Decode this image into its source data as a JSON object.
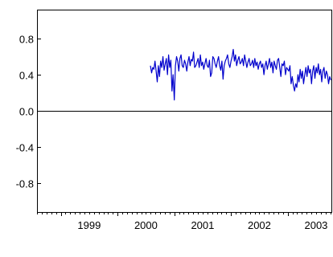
{
  "chart_data": {
    "type": "line",
    "title": "",
    "xlabel": "",
    "ylabel": "",
    "xlim": [
      1998.58,
      2003.77
    ],
    "ylim": [
      -1.12,
      1.12
    ],
    "x_ticks": [
      {
        "value": 1999.0,
        "label": "1999"
      },
      {
        "value": 2000.0,
        "label": "2000"
      },
      {
        "value": 2001.0,
        "label": "2001"
      },
      {
        "value": 2002.0,
        "label": "2002"
      },
      {
        "value": 2003.0,
        "label": "2003"
      }
    ],
    "y_ticks": [
      {
        "value": 0.8,
        "label": "0.8"
      },
      {
        "value": 0.4,
        "label": "0.4"
      },
      {
        "value": 0.0,
        "label": "0.0"
      },
      {
        "value": -0.4,
        "label": "-0.4"
      },
      {
        "value": -0.8,
        "label": "-0.8"
      }
    ],
    "zero_line": true,
    "grid": false,
    "series": [
      {
        "color": "#0000cc",
        "x": [
          2000.58,
          2000.6,
          2000.62,
          2000.64,
          2000.66,
          2000.68,
          2000.7,
          2000.72,
          2000.74,
          2000.76,
          2000.78,
          2000.8,
          2000.82,
          2000.84,
          2000.86,
          2000.88,
          2000.9,
          2000.92,
          2000.94,
          2000.96,
          2000.98,
          2001.0,
          2001.02,
          2001.04,
          2001.06,
          2001.08,
          2001.1,
          2001.12,
          2001.14,
          2001.16,
          2001.18,
          2001.2,
          2001.22,
          2001.24,
          2001.26,
          2001.28,
          2001.3,
          2001.32,
          2001.34,
          2001.36,
          2001.38,
          2001.4,
          2001.42,
          2001.44,
          2001.46,
          2001.48,
          2001.5,
          2001.52,
          2001.54,
          2001.56,
          2001.58,
          2001.6,
          2001.62,
          2001.64,
          2001.66,
          2001.68,
          2001.7,
          2001.72,
          2001.74,
          2001.76,
          2001.78,
          2001.8,
          2001.82,
          2001.84,
          2001.86,
          2001.88,
          2001.9,
          2001.92,
          2001.94,
          2001.96,
          2001.98,
          2002.0,
          2002.02,
          2002.04,
          2002.06,
          2002.08,
          2002.1,
          2002.12,
          2002.14,
          2002.16,
          2002.18,
          2002.2,
          2002.22,
          2002.24,
          2002.26,
          2002.28,
          2002.3,
          2002.32,
          2002.34,
          2002.36,
          2002.38,
          2002.4,
          2002.42,
          2002.44,
          2002.46,
          2002.48,
          2002.5,
          2002.52,
          2002.54,
          2002.56,
          2002.58,
          2002.6,
          2002.62,
          2002.64,
          2002.66,
          2002.68,
          2002.7,
          2002.72,
          2002.74,
          2002.76,
          2002.78,
          2002.8,
          2002.82,
          2002.84,
          2002.86,
          2002.88,
          2002.9,
          2002.92,
          2002.94,
          2002.96,
          2002.98,
          2003.0,
          2003.02,
          2003.04,
          2003.06,
          2003.08,
          2003.1,
          2003.12,
          2003.14,
          2003.16,
          2003.18,
          2003.2,
          2003.22,
          2003.24,
          2003.26,
          2003.28,
          2003.3,
          2003.32,
          2003.34,
          2003.36,
          2003.38,
          2003.4,
          2003.42,
          2003.44,
          2003.46,
          2003.48,
          2003.5,
          2003.52,
          2003.54,
          2003.56,
          2003.58,
          2003.6,
          2003.62,
          2003.64,
          2003.66,
          2003.68,
          2003.7,
          2003.72,
          2003.74,
          2003.76
        ],
        "y": [
          0.5,
          0.42,
          0.48,
          0.46,
          0.55,
          0.44,
          0.32,
          0.5,
          0.38,
          0.55,
          0.48,
          0.6,
          0.45,
          0.52,
          0.58,
          0.4,
          0.62,
          0.48,
          0.56,
          0.22,
          0.4,
          0.12,
          0.5,
          0.6,
          0.55,
          0.44,
          0.58,
          0.62,
          0.5,
          0.48,
          0.56,
          0.52,
          0.44,
          0.54,
          0.6,
          0.5,
          0.57,
          0.55,
          0.65,
          0.48,
          0.5,
          0.54,
          0.58,
          0.48,
          0.62,
          0.5,
          0.54,
          0.46,
          0.52,
          0.58,
          0.5,
          0.48,
          0.56,
          0.38,
          0.42,
          0.6,
          0.58,
          0.52,
          0.48,
          0.55,
          0.6,
          0.5,
          0.45,
          0.55,
          0.35,
          0.5,
          0.55,
          0.58,
          0.62,
          0.52,
          0.48,
          0.55,
          0.6,
          0.68,
          0.55,
          0.62,
          0.5,
          0.56,
          0.6,
          0.52,
          0.54,
          0.58,
          0.5,
          0.62,
          0.55,
          0.48,
          0.54,
          0.58,
          0.5,
          0.52,
          0.56,
          0.48,
          0.58,
          0.5,
          0.54,
          0.46,
          0.52,
          0.55,
          0.48,
          0.52,
          0.4,
          0.5,
          0.55,
          0.46,
          0.52,
          0.58,
          0.48,
          0.54,
          0.42,
          0.55,
          0.5,
          0.46,
          0.56,
          0.58,
          0.48,
          0.38,
          0.52,
          0.5,
          0.55,
          0.4,
          0.48,
          0.46,
          0.44,
          0.5,
          0.3,
          0.38,
          0.28,
          0.22,
          0.3,
          0.26,
          0.4,
          0.32,
          0.46,
          0.36,
          0.44,
          0.3,
          0.4,
          0.48,
          0.38,
          0.5,
          0.42,
          0.46,
          0.3,
          0.44,
          0.5,
          0.36,
          0.48,
          0.42,
          0.52,
          0.4,
          0.46,
          0.32,
          0.44,
          0.48,
          0.36,
          0.44,
          0.4,
          0.3,
          0.38,
          0.34
        ]
      }
    ]
  }
}
